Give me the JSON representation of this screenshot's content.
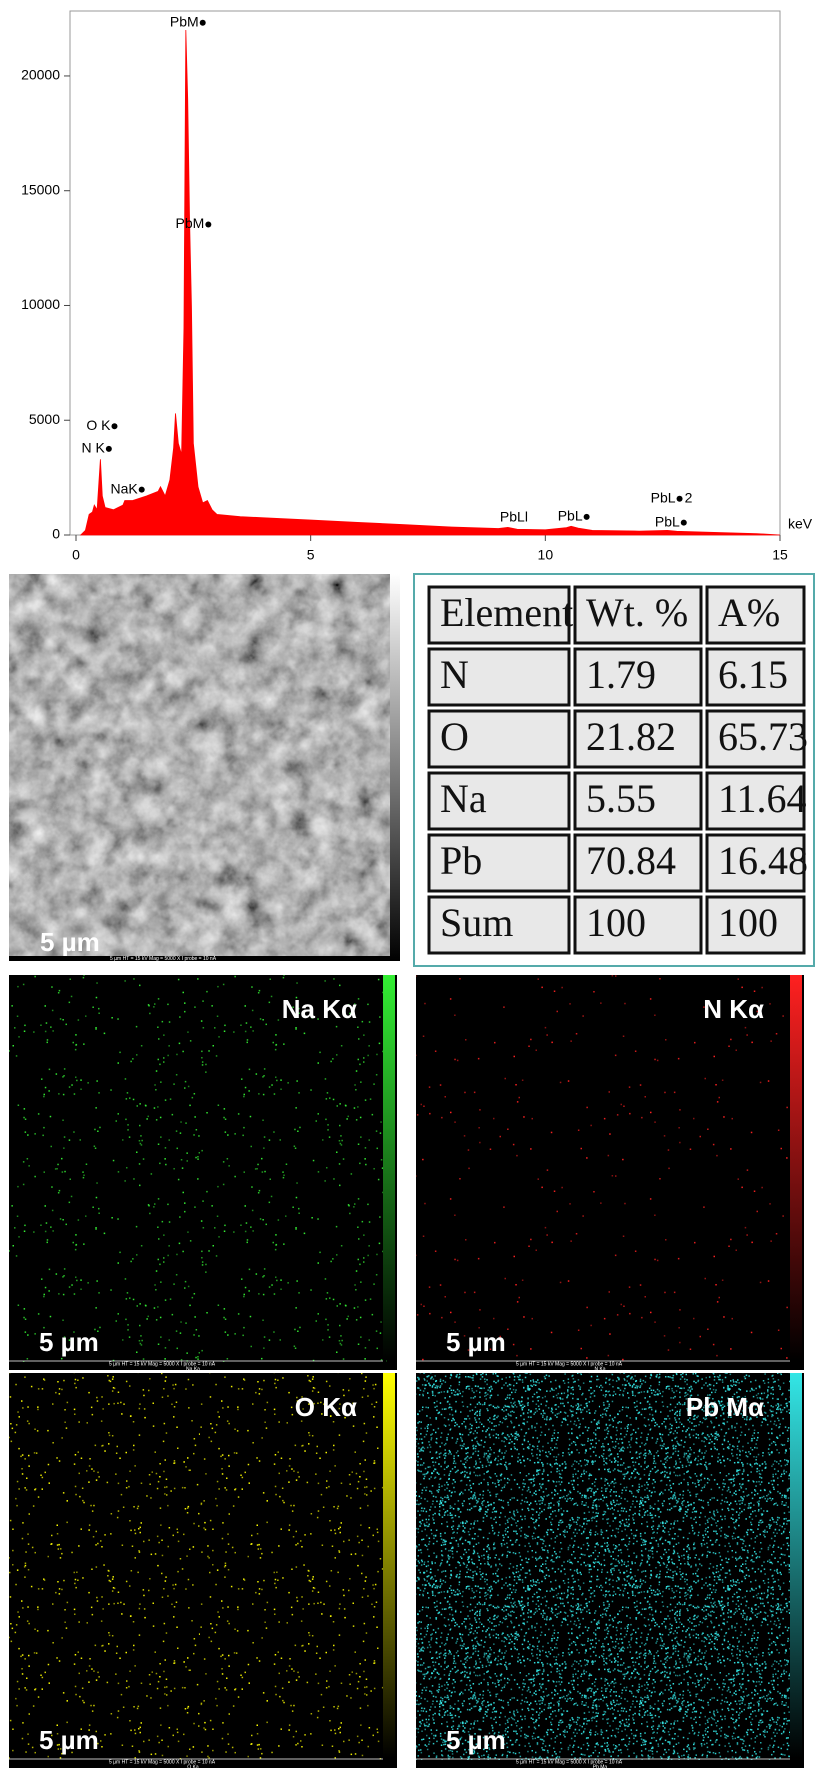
{
  "chart_data": {
    "type": "area",
    "color": "#ff0000",
    "x_label": "keV",
    "x": [
      0.1,
      0.2,
      0.28,
      0.35,
      0.39,
      0.45,
      0.52,
      0.56,
      0.62,
      0.8,
      1.0,
      1.04,
      1.2,
      1.5,
      1.75,
      1.8,
      1.9,
      2.0,
      2.08,
      2.12,
      2.18,
      2.25,
      2.3,
      2.34,
      2.38,
      2.42,
      2.46,
      2.5,
      2.6,
      2.7,
      2.8,
      2.9,
      3.0,
      3.5,
      4.0,
      5.0,
      6.0,
      7.0,
      8.0,
      9.0,
      9.2,
      9.4,
      10.0,
      10.45,
      10.55,
      10.7,
      11.0,
      12.0,
      12.6,
      12.8,
      13.5,
      14.5,
      15.0
    ],
    "values": [
      0,
      200,
      900,
      1000,
      1300,
      1100,
      3300,
      1700,
      1200,
      1100,
      1300,
      1500,
      1500,
      1700,
      1900,
      2100,
      1700,
      2400,
      3800,
      5300,
      4000,
      3500,
      9000,
      22000,
      19000,
      13700,
      10000,
      4000,
      2100,
      1400,
      1500,
      1100,
      900,
      800,
      750,
      650,
      550,
      450,
      350,
      280,
      330,
      250,
      230,
      320,
      380,
      300,
      200,
      170,
      200,
      160,
      120,
      60,
      0
    ],
    "xlim": [
      0,
      15
    ],
    "ylim": [
      0,
      22830
    ],
    "xticks": [
      0,
      5,
      10,
      15
    ],
    "yticks": [
      0,
      5000,
      10000,
      15000,
      20000
    ],
    "annotations": [
      {
        "text": "PbM",
        "x": 2.7,
        "y": 22320
      },
      {
        "text": "PbM",
        "x": 2.82,
        "y": 13530
      },
      {
        "text": "O K",
        "x": 0.82,
        "y": 4740
      },
      {
        "text": "N K",
        "x": 0.7,
        "y": 3750
      },
      {
        "text": "NaK",
        "x": 1.4,
        "y": 1975
      },
      {
        "text": "PbLl",
        "x": 9.63,
        "y": 740,
        "dot": false
      },
      {
        "text": "PbL",
        "x": 10.88,
        "y": 790
      },
      {
        "text": "PbL",
        "x": 12.86,
        "y": 1580,
        "suffix": "2"
      },
      {
        "text": "PbL",
        "x": 12.95,
        "y": 540
      }
    ]
  },
  "sem_image": {
    "scale_label": "5 µm",
    "footer": "5 µm   HT = 15 kV   Mag = 5000 X   I probe = 10 nA"
  },
  "table": {
    "header": [
      "Element",
      "Wt. %",
      "A%"
    ],
    "rows": [
      [
        "N",
        1.79,
        6.15
      ],
      [
        "O",
        21.82,
        65.73
      ],
      [
        "Na",
        5.55,
        11.64
      ],
      [
        "Pb",
        70.84,
        16.48
      ],
      [
        "Sum",
        100,
        100
      ]
    ]
  },
  "maps": [
    {
      "label": "Na Kα",
      "color": "#33ee33",
      "channel": "Na Ka",
      "scale_label": "5 µm",
      "footer": "5 µm   HT = 15 kV   Mag = 5000 X   I probe = 10 nA"
    },
    {
      "label": "N Kα",
      "color": "#ff2020",
      "channel": "N Ka",
      "scale_label": "5 µm",
      "footer": "5 µm   HT = 15 kV   Mag = 5000 X   I probe = 10 nA"
    },
    {
      "label": "O Kα",
      "color": "#ffff00",
      "channel": "O Ka",
      "scale_label": "5 µm",
      "footer": "5 µm   HT = 15 kV   Mag = 5000 X   I probe = 10 nA"
    },
    {
      "label": "Pb Mα",
      "color": "#33e6e6",
      "channel": "Pb Ma",
      "scale_label": "5 µm",
      "footer": "5 µm   HT = 15 kV   Mag = 5000 X   I probe = 10 nA"
    }
  ]
}
